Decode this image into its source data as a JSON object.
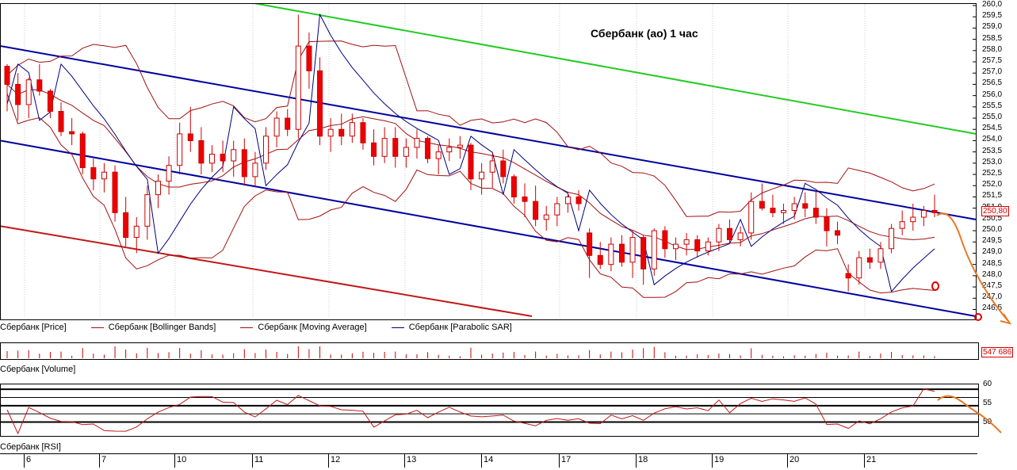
{
  "chart_data": {
    "type": "candlestick",
    "title": "Сбербанк (ао)  1 час",
    "y_ticks": [
      "260,0",
      "259,5",
      "259,0",
      "258,5",
      "258,0",
      "257,5",
      "257,0",
      "256,5",
      "256,0",
      "255,5",
      "255,0",
      "254,5",
      "254,0",
      "253,5",
      "253,0",
      "252,5",
      "252,0",
      "251,5",
      "251,0",
      "250,5",
      "250,0",
      "249,5",
      "249,0",
      "248,5",
      "248,0",
      "247,5",
      "247,0",
      "246,5"
    ],
    "ylim": [
      246.2,
      260.0
    ],
    "last_price": "250,80",
    "last_volume": "547 686",
    "x_labels": [
      "6",
      "7",
      "10",
      "11",
      "12",
      "13",
      "14",
      "17",
      "18",
      "19",
      "20",
      "21"
    ],
    "legend": [
      {
        "name": "Сбербанк [Price]",
        "color": "#cc0000"
      },
      {
        "name": "Сбербанк [Bollinger Bands]",
        "color": "#a01010"
      },
      {
        "name": "Сбербанк [Moving Average]",
        "color": "#a01010"
      },
      {
        "name": "Сбербанк [Parabolic SAR]",
        "color": "#000080"
      }
    ],
    "volume_label": "Сбербанк [Volume]",
    "rsi_label": "Сбербанк [RSI]",
    "rsi_ticks": [
      "60",
      "55",
      "50"
    ],
    "candles": [
      [
        257.3,
        257.4,
        255.3,
        256.5
      ],
      [
        256.5,
        257.0,
        254.9,
        255.6
      ],
      [
        255.6,
        256.8,
        255.0,
        256.7
      ],
      [
        256.7,
        257.4,
        256.0,
        256.2
      ],
      [
        256.2,
        256.3,
        255.0,
        255.3
      ],
      [
        255.3,
        255.7,
        254.2,
        254.4
      ],
      [
        254.4,
        255.0,
        253.8,
        254.3
      ],
      [
        254.3,
        254.4,
        252.5,
        252.8
      ],
      [
        252.8,
        253.2,
        251.8,
        252.3
      ],
      [
        252.3,
        253.0,
        251.7,
        252.6
      ],
      [
        252.6,
        252.9,
        250.4,
        250.8
      ],
      [
        250.8,
        251.5,
        249.3,
        249.7
      ],
      [
        249.7,
        250.6,
        249.0,
        250.2
      ],
      [
        250.2,
        252.0,
        249.6,
        251.6
      ],
      [
        251.6,
        252.5,
        251.0,
        252.2
      ],
      [
        252.2,
        253.3,
        251.6,
        252.9
      ],
      [
        252.9,
        254.8,
        252.5,
        254.3
      ],
      [
        254.3,
        255.5,
        253.5,
        254.0
      ],
      [
        254.0,
        254.6,
        252.5,
        253.0
      ],
      [
        253.0,
        253.8,
        252.6,
        253.4
      ],
      [
        253.4,
        254.0,
        252.6,
        253.1
      ],
      [
        253.1,
        254.0,
        252.4,
        253.6
      ],
      [
        253.6,
        254.1,
        252.0,
        252.4
      ],
      [
        252.4,
        253.5,
        252.0,
        253.0
      ],
      [
        253.0,
        254.6,
        252.7,
        254.2
      ],
      [
        254.2,
        255.3,
        253.7,
        255.0
      ],
      [
        255.0,
        255.4,
        254.2,
        254.5
      ],
      [
        254.5,
        259.6,
        254.1,
        258.2
      ],
      [
        258.2,
        258.8,
        256.3,
        257.1
      ],
      [
        257.1,
        257.7,
        253.8,
        254.2
      ],
      [
        254.2,
        255.0,
        253.5,
        254.5
      ],
      [
        254.5,
        255.2,
        253.8,
        254.2
      ],
      [
        254.2,
        255.2,
        253.9,
        254.8
      ],
      [
        254.8,
        255.0,
        253.6,
        253.9
      ],
      [
        253.9,
        254.5,
        252.9,
        253.3
      ],
      [
        253.3,
        254.6,
        253.0,
        254.1
      ],
      [
        254.1,
        254.6,
        252.8,
        253.3
      ],
      [
        253.3,
        254.1,
        252.8,
        253.7
      ],
      [
        253.7,
        254.5,
        253.2,
        254.1
      ],
      [
        254.1,
        254.2,
        253.0,
        253.2
      ],
      [
        253.2,
        253.8,
        252.5,
        253.5
      ],
      [
        253.5,
        254.1,
        253.1,
        253.7
      ],
      [
        253.7,
        254.2,
        253.2,
        253.8
      ],
      [
        253.8,
        253.9,
        251.8,
        252.3
      ],
      [
        252.3,
        253.0,
        251.6,
        252.6
      ],
      [
        252.6,
        253.4,
        251.9,
        253.1
      ],
      [
        253.1,
        253.6,
        252.1,
        252.4
      ],
      [
        252.4,
        252.5,
        251.2,
        251.5
      ],
      [
        251.5,
        252.1,
        250.6,
        251.3
      ],
      [
        251.3,
        252.0,
        250.2,
        250.5
      ],
      [
        250.5,
        251.1,
        250.0,
        250.7
      ],
      [
        250.7,
        251.5,
        250.2,
        251.2
      ],
      [
        251.2,
        251.7,
        250.8,
        251.5
      ],
      [
        251.5,
        251.8,
        250.9,
        251.2
      ],
      [
        249.9,
        250.1,
        247.9,
        248.9
      ],
      [
        248.9,
        249.5,
        248.3,
        248.5
      ],
      [
        248.5,
        249.7,
        248.2,
        249.4
      ],
      [
        249.4,
        249.8,
        248.4,
        248.6
      ],
      [
        248.6,
        250.0,
        247.9,
        249.7
      ],
      [
        249.7,
        249.8,
        247.6,
        248.3
      ],
      [
        248.3,
        250.1,
        248.0,
        250.0
      ],
      [
        250.0,
        250.2,
        248.8,
        249.2
      ],
      [
        249.2,
        249.7,
        248.7,
        249.4
      ],
      [
        249.4,
        249.9,
        248.9,
        249.6
      ],
      [
        249.6,
        249.8,
        248.8,
        249.1
      ],
      [
        249.1,
        249.7,
        248.9,
        249.5
      ],
      [
        249.5,
        250.3,
        249.1,
        250.1
      ],
      [
        250.1,
        250.5,
        249.4,
        249.6
      ],
      [
        249.6,
        250.2,
        249.3,
        249.9
      ],
      [
        249.9,
        251.7,
        249.6,
        251.3
      ],
      [
        251.3,
        252.1,
        250.9,
        251.0
      ],
      [
        251.0,
        251.6,
        250.6,
        250.8
      ],
      [
        250.8,
        251.2,
        250.3,
        250.9
      ],
      [
        250.9,
        251.5,
        250.5,
        251.2
      ],
      [
        251.2,
        251.7,
        250.6,
        251.0
      ],
      [
        251.0,
        251.8,
        250.3,
        250.6
      ],
      [
        250.6,
        251.0,
        249.3,
        250.0
      ],
      [
        250.0,
        250.4,
        249.4,
        249.8
      ],
      [
        248.1,
        248.5,
        247.3,
        247.9
      ],
      [
        247.9,
        249.1,
        247.6,
        248.8
      ],
      [
        248.8,
        249.2,
        248.3,
        248.6
      ],
      [
        248.6,
        249.5,
        248.3,
        249.2
      ],
      [
        249.2,
        250.3,
        249.0,
        250.1
      ],
      [
        250.1,
        250.9,
        249.8,
        250.4
      ],
      [
        250.4,
        251.2,
        250.0,
        250.6
      ],
      [
        250.6,
        251.1,
        250.2,
        250.9
      ],
      [
        250.9,
        251.6,
        250.6,
        250.8
      ]
    ]
  }
}
